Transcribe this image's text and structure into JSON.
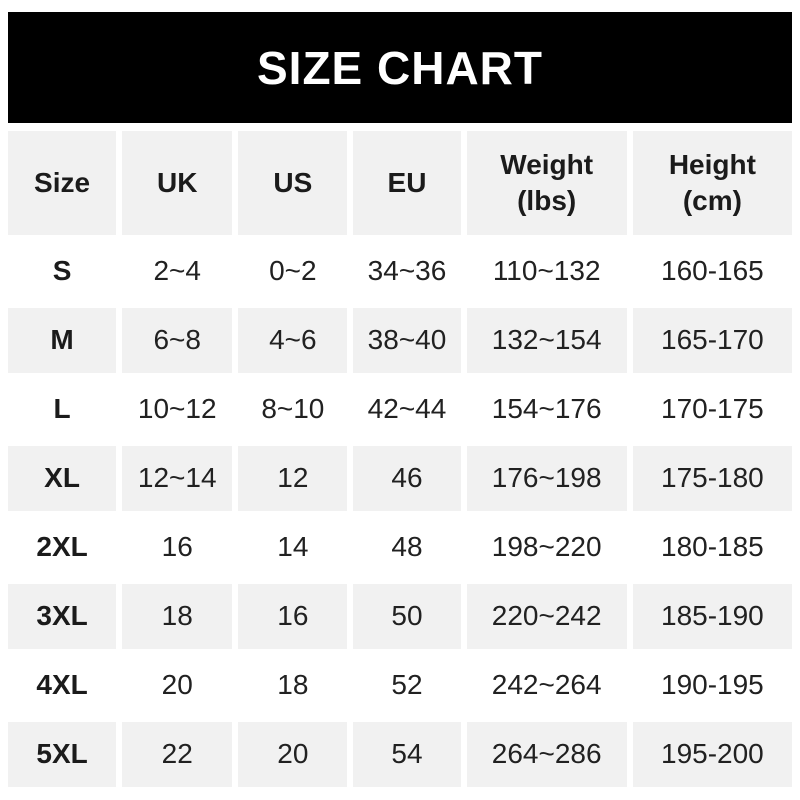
{
  "banner": {
    "title": "SIZE CHART"
  },
  "chart_data": {
    "type": "table",
    "title": "SIZE CHART",
    "columns": [
      "Size",
      "UK",
      "US",
      "EU",
      "Weight (lbs)",
      "Height (cm)"
    ],
    "rows": [
      [
        "S",
        "2~4",
        "0~2",
        "34~36",
        "110~132",
        "160-165"
      ],
      [
        "M",
        "6~8",
        "4~6",
        "38~40",
        "132~154",
        "165-170"
      ],
      [
        "L",
        "10~12",
        "8~10",
        "42~44",
        "154~176",
        "170-175"
      ],
      [
        "XL",
        "12~14",
        "12",
        "46",
        "176~198",
        "175-180"
      ],
      [
        "2XL",
        "16",
        "14",
        "48",
        "198~220",
        "180-185"
      ],
      [
        "3XL",
        "18",
        "16",
        "50",
        "220~242",
        "185-190"
      ],
      [
        "4XL",
        "20",
        "18",
        "52",
        "242~264",
        "190-195"
      ],
      [
        "5XL",
        "22",
        "20",
        "54",
        "264~286",
        "195-200"
      ]
    ],
    "layout": {
      "header_background": "#f1f1f1",
      "stripe_background": "#f1f1f1",
      "row_background": "#ffffff",
      "banner_background": "#000000",
      "banner_text_color": "#ffffff",
      "cell_text_color": "#212121"
    }
  }
}
